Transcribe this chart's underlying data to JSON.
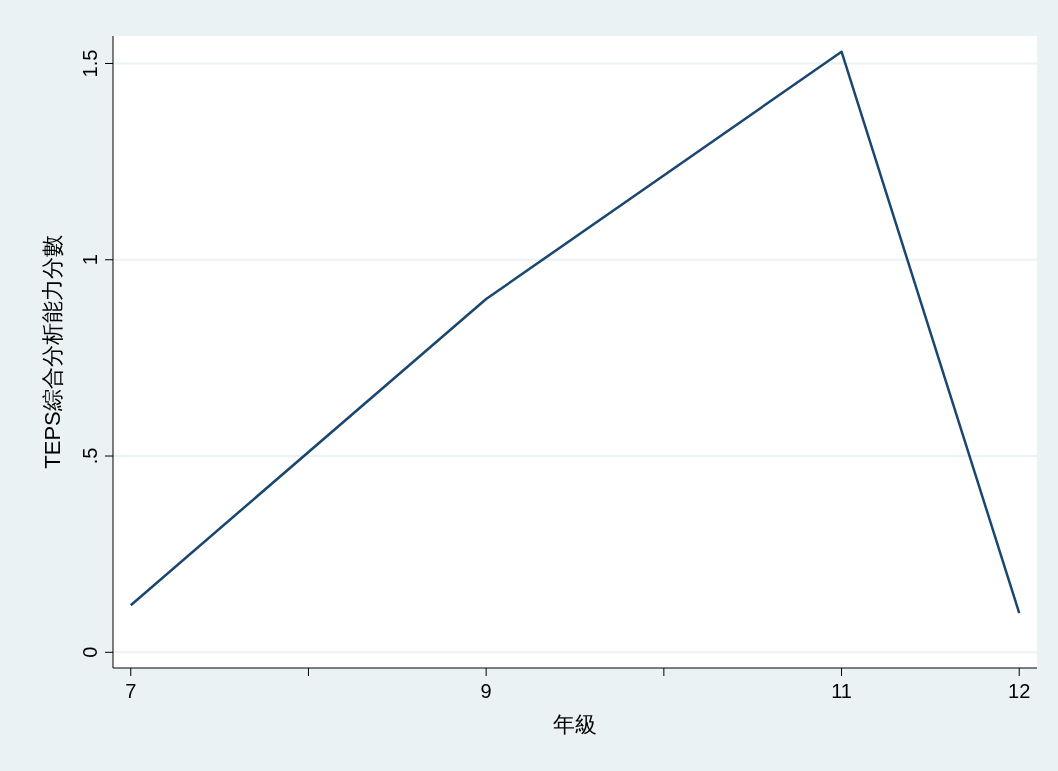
{
  "chart_data": {
    "type": "line",
    "xlabel": "年級",
    "ylabel": "TEPS綜合分析能力分數",
    "x": [
      7,
      9,
      11,
      12
    ],
    "series": [
      {
        "color": "#1a476f",
        "values": [
          0.12,
          0.9,
          1.53,
          0.1
        ]
      }
    ],
    "xlim": [
      6.9,
      12.1
    ],
    "ylim": [
      -0.04,
      1.57
    ],
    "xticks": [
      7,
      {
        "value": 8,
        "label": null
      },
      9,
      {
        "value": 10,
        "label": null
      },
      11,
      12
    ],
    "yticks": [
      0,
      {
        "value": 0.5,
        "label": ".5"
      },
      1,
      1.5
    ],
    "grid": "y",
    "marker": "none",
    "line_style": "solid"
  }
}
